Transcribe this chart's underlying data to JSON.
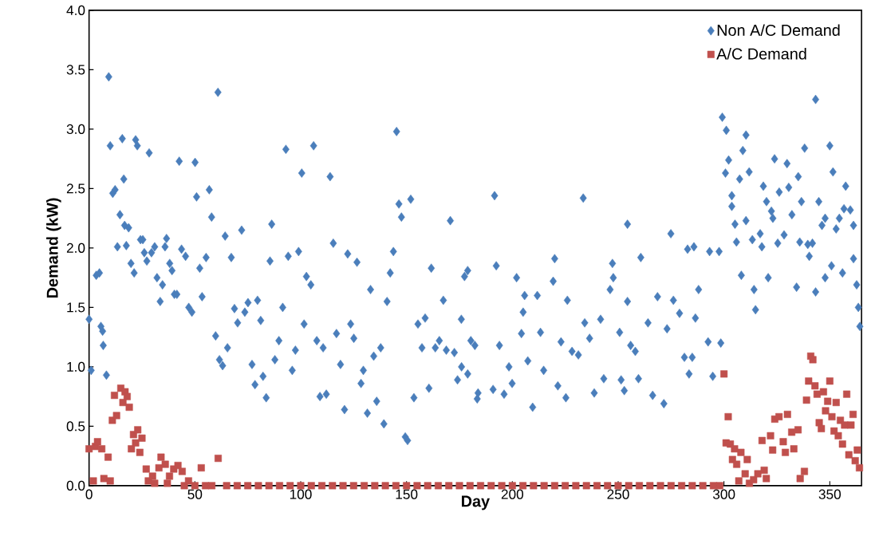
{
  "chart_data": {
    "type": "scatter",
    "xlabel": "Day",
    "ylabel": "Demand (kW)",
    "legend": "top right",
    "grid": false,
    "xlim": [
      0,
      365
    ],
    "ylim": [
      0,
      4
    ],
    "xticks": [
      0,
      50,
      100,
      150,
      200,
      250,
      300,
      350
    ],
    "yticks": [
      {
        "value": 0,
        "label": "0.0"
      },
      {
        "value": 0.5,
        "label": "0.5"
      },
      {
        "value": 1,
        "label": "1.0"
      },
      {
        "value": 1.5,
        "label": "1.5"
      },
      {
        "value": 2,
        "label": "2.0"
      },
      {
        "value": 2.5,
        "label": "2.5"
      },
      {
        "value": 3,
        "label": "3.0"
      },
      {
        "value": 3.5,
        "label": "3.5"
      },
      {
        "value": 4,
        "label": "4.0"
      }
    ],
    "series": [
      {
        "name": "Non A/C Demand",
        "color": "#4a7ebb",
        "marker": "diamond",
        "x": [
          0,
          1,
          3.4,
          4.9,
          5.6,
          6.4,
          6.7,
          8.2,
          9.3,
          10,
          11.2,
          12.3,
          13.4,
          14.6,
          15.7,
          16.4,
          16.8,
          17.6,
          18.7,
          19.8,
          21.3,
          22,
          22.8,
          24.3,
          25.4,
          26.1,
          27.3,
          28.4,
          29.5,
          31,
          32.1,
          33.6,
          34.7,
          35.9,
          36.6,
          38.1,
          39.2,
          40.3,
          41.5,
          42.6,
          43.7,
          45.6,
          47.1,
          48.6,
          50.1,
          50.8,
          52.3,
          53.4,
          55.3,
          56.8,
          57.9,
          59.8,
          60.9,
          61.6,
          63.1,
          64.3,
          65.4,
          67.2,
          68.7,
          70.2,
          72.1,
          73.6,
          75.1,
          77,
          78.4,
          79.6,
          81.1,
          82.2,
          83.7,
          85.5,
          86.3,
          87.8,
          89.7,
          91.5,
          93,
          94.1,
          96,
          97.5,
          99,
          100.5,
          101.6,
          102.7,
          104.8,
          106.1,
          107.6,
          109.1,
          110.6,
          112.1,
          113.9,
          115.4,
          116.9,
          118.8,
          120.7,
          122.2,
          123.6,
          125.1,
          126.6,
          128.5,
          129.6,
          131.5,
          133,
          134.5,
          135.9,
          137.8,
          139.3,
          140.8,
          142.3,
          143.8,
          145.3,
          146.4,
          147.6,
          149.4,
          150.5,
          152,
          153.5,
          155.4,
          157.3,
          158.8,
          160.6,
          161.7,
          163.6,
          165.5,
          167.4,
          168.8,
          170.7,
          172.6,
          174.1,
          175.9,
          176,
          177.4,
          178.9,
          178.9,
          180.4,
          182.3,
          183.4,
          183.8,
          190.9,
          191.6,
          192.4,
          193.9,
          196.1,
          198.4,
          199.9,
          202,
          204.3,
          205.1,
          205.8,
          207.3,
          209.6,
          211.8,
          213.3,
          214.8,
          219.3,
          220,
          221.5,
          223,
          225.3,
          226,
          228.2,
          231.2,
          233.5,
          234.2,
          236.5,
          238.7,
          241.7,
          243.2,
          246.2,
          247.3,
          247.7,
          250.7,
          251.4,
          252.9,
          254.4,
          254.4,
          255.9,
          258.1,
          259.6,
          260.7,
          264.1,
          266.3,
          268.6,
          271.6,
          273.1,
          274.9,
          276.1,
          279,
          281.3,
          282.8,
          283.5,
          285,
          285.8,
          286.5,
          288,
          292.5,
          293.2,
          294.7,
          297.7,
          298.5,
          299.2,
          300.7,
          301.1,
          302.2,
          303.7,
          303.7,
          305.2,
          305.9,
          307.4,
          308.2,
          308.9,
          310.4,
          310.4,
          311.9,
          313.4,
          314.2,
          314.9,
          317.1,
          317.9,
          318.6,
          320.1,
          320.9,
          322.4,
          323.1,
          323.9,
          325.4,
          326.1,
          328.4,
          329.8,
          330.6,
          332.1,
          334.3,
          335.1,
          335.8,
          336.6,
          338.1,
          339.6,
          340.3,
          341.8,
          343.3,
          343.3,
          344.8,
          346.3,
          347.8,
          347.8,
          350,
          350.8,
          351.5,
          353,
          354.5,
          356,
          356.7,
          357.5,
          359.7,
          361.2,
          361.2,
          362.7,
          363.5,
          364.2
        ],
        "values": [
          1.4,
          0.97,
          1.77,
          1.79,
          1.34,
          1.3,
          1.18,
          0.93,
          3.44,
          2.86,
          2.46,
          2.49,
          2.01,
          2.28,
          2.92,
          2.58,
          2.19,
          2.02,
          2.17,
          1.87,
          1.79,
          2.91,
          2.86,
          2.07,
          2.07,
          1.96,
          1.89,
          2.8,
          1.96,
          2.01,
          1.75,
          1.55,
          1.69,
          2.01,
          2.08,
          1.87,
          1.81,
          1.61,
          1.61,
          2.73,
          1.99,
          1.93,
          1.5,
          1.46,
          2.72,
          2.43,
          1.83,
          1.59,
          1.92,
          2.49,
          2.26,
          1.26,
          3.31,
          1.06,
          1.01,
          2.1,
          1.16,
          1.92,
          1.49,
          1.37,
          2.15,
          1.46,
          1.54,
          1.02,
          0.85,
          1.56,
          1.39,
          0.92,
          0.74,
          1.89,
          2.2,
          1.06,
          1.22,
          1.5,
          2.83,
          1.93,
          0.97,
          1.14,
          1.97,
          2.63,
          1.36,
          1.76,
          1.69,
          2.86,
          1.22,
          0.75,
          1.16,
          0.77,
          2.6,
          2.04,
          1.28,
          1.02,
          0.64,
          1.95,
          1.36,
          1.24,
          1.88,
          0.86,
          0.97,
          0.61,
          1.65,
          1.09,
          0.71,
          1.16,
          0.52,
          1.55,
          1.79,
          1.97,
          2.98,
          2.37,
          2.26,
          0.41,
          0.38,
          2.41,
          0.74,
          1.36,
          1.16,
          1.41,
          0.82,
          1.83,
          1.16,
          1.22,
          1.56,
          1.14,
          2.23,
          1.12,
          0.89,
          1.4,
          1.0,
          1.76,
          0.94,
          1.81,
          1.22,
          1.18,
          0.73,
          0.78,
          0.81,
          2.44,
          1.85,
          1.18,
          0.77,
          1.0,
          0.86,
          1.75,
          1.28,
          1.46,
          1.6,
          1.05,
          0.66,
          1.6,
          1.29,
          0.97,
          1.72,
          1.91,
          0.84,
          1.21,
          0.74,
          1.56,
          1.13,
          1.1,
          2.42,
          1.37,
          1.24,
          0.78,
          1.4,
          0.9,
          1.65,
          1.87,
          1.75,
          1.29,
          0.89,
          0.8,
          2.2,
          1.55,
          1.18,
          1.13,
          0.9,
          1.92,
          1.37,
          0.76,
          1.59,
          0.69,
          1.32,
          2.12,
          1.56,
          1.45,
          1.08,
          1.99,
          0.94,
          1.08,
          2.01,
          1.41,
          1.65,
          1.21,
          1.97,
          0.92,
          1.97,
          1.2,
          3.1,
          2.63,
          2.99,
          2.74,
          2.44,
          2.35,
          2.2,
          2.05,
          2.58,
          1.77,
          2.82,
          2.95,
          2.23,
          2.64,
          2.07,
          1.65,
          1.48,
          2.12,
          2.01,
          2.52,
          2.39,
          1.75,
          2.31,
          2.25,
          2.75,
          2.04,
          2.47,
          2.11,
          2.71,
          2.51,
          2.28,
          1.67,
          2.6,
          2.05,
          2.39,
          2.84,
          2.03,
          1.93,
          2.04,
          3.25,
          1.63,
          2.39,
          2.19,
          2.25,
          1.75,
          2.86,
          1.85,
          2.64,
          2.16,
          2.25,
          1.79,
          2.33,
          2.52,
          2.32,
          2.19,
          1.91,
          1.69,
          1.5,
          1.34
        ]
      },
      {
        "name": "A/C Demand",
        "color": "#c0504d",
        "marker": "square",
        "x": [
          0,
          2,
          3,
          4,
          6,
          7,
          9,
          10,
          11,
          12,
          13,
          15,
          16,
          17,
          18,
          19,
          20,
          21,
          22,
          23,
          24,
          25,
          27,
          28,
          30,
          31,
          33,
          34,
          36,
          37,
          38,
          40,
          42,
          44,
          45,
          47,
          50,
          53,
          55,
          58,
          61,
          65,
          70,
          75,
          80,
          85,
          90,
          95,
          100,
          105,
          110,
          115,
          120,
          125,
          130,
          135,
          140,
          145,
          150,
          155,
          160,
          165,
          170,
          175,
          180,
          185,
          190,
          195,
          200,
          205,
          210,
          215,
          220,
          225,
          230,
          235,
          240,
          245,
          250,
          255,
          260,
          265,
          270,
          275,
          280,
          285,
          290,
          295,
          298,
          300,
          301,
          302,
          303,
          304,
          305,
          306,
          307,
          308,
          310,
          311,
          312,
          314,
          316,
          318,
          319,
          320,
          322,
          323,
          324,
          326,
          328,
          329,
          330,
          332,
          333,
          335,
          336,
          338,
          339,
          340,
          341,
          342,
          343,
          344,
          345,
          346,
          347,
          348,
          349,
          350,
          351,
          352,
          353,
          354,
          355,
          356,
          357,
          358,
          359,
          360,
          361,
          362,
          363,
          364
        ],
        "values": [
          0.31,
          0.04,
          0.33,
          0.37,
          0.31,
          0.06,
          0.24,
          0.04,
          0.55,
          0.76,
          0.59,
          0.82,
          0.7,
          0.79,
          0.75,
          0.66,
          0.31,
          0.43,
          0.36,
          0.47,
          0.28,
          0.4,
          0.14,
          0.04,
          0.08,
          0.02,
          0.15,
          0.24,
          0.18,
          0.02,
          0.08,
          0.14,
          0.17,
          0.12,
          0,
          0.04,
          0,
          0.15,
          0,
          0,
          0.23,
          0,
          0,
          0,
          0,
          0,
          0,
          0,
          0,
          0,
          0,
          0,
          0,
          0,
          0,
          0,
          0,
          0,
          0,
          0,
          0,
          0,
          0,
          0,
          0,
          0,
          0,
          0,
          0,
          0,
          0,
          0,
          0,
          0,
          0,
          0,
          0,
          0,
          0,
          0,
          0,
          0,
          0,
          0,
          0,
          0,
          0,
          0,
          0,
          0.94,
          0.36,
          0.58,
          0.35,
          0.22,
          0.31,
          0.18,
          0.04,
          0.28,
          0.1,
          0.22,
          0.02,
          0.05,
          0.1,
          0.38,
          0.13,
          0.06,
          0.42,
          0.3,
          0.56,
          0.58,
          0.37,
          0.28,
          0.6,
          0.45,
          0.31,
          0.47,
          0.06,
          0.12,
          0.72,
          0.88,
          1.09,
          1.06,
          0.84,
          0.77,
          0.53,
          0.48,
          0.79,
          0.63,
          0.71,
          0.88,
          0.58,
          0.46,
          0.7,
          0.42,
          0.55,
          0.35,
          0.51,
          0.77,
          0.26,
          0.51,
          0.6,
          0.21,
          0.3,
          0.15
        ]
      }
    ]
  }
}
